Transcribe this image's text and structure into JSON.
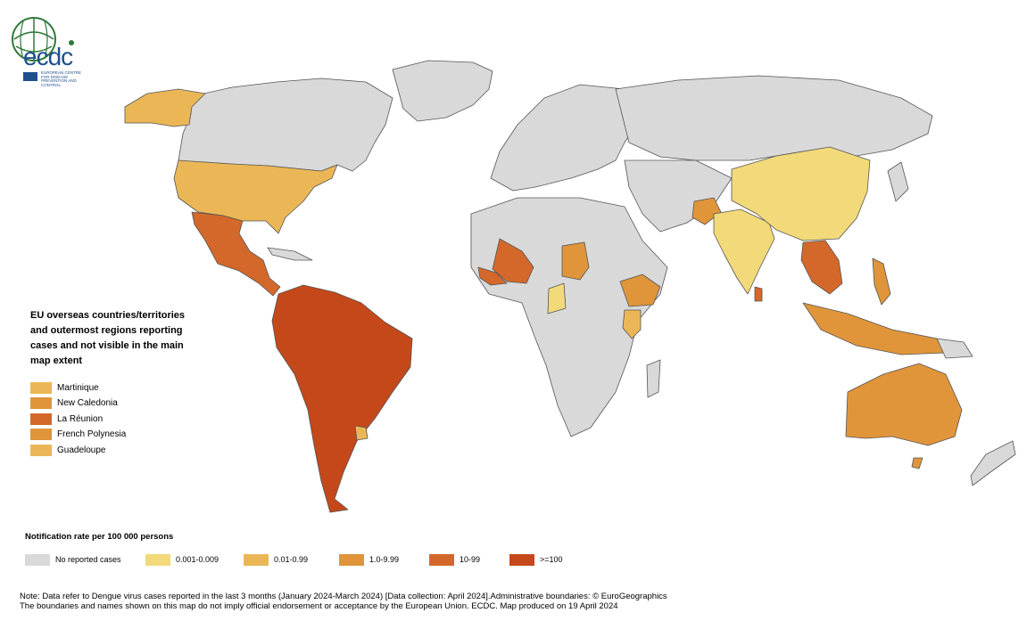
{
  "logo": {
    "text": "ecdc",
    "subtitle": "EUROPEAN CENTRE FOR DISEASE PREVENTION AND CONTROL"
  },
  "colors": {
    "none": "#d9d9d9",
    "c1": "#f2d97a",
    "c2": "#ebb756",
    "c3": "#e0953a",
    "c4": "#d4682a",
    "c5": "#c5481a",
    "ocean": "#ffffff",
    "border": "#555555"
  },
  "eu_panel": {
    "title_lines": [
      "EU overseas countries/territories",
      "and outermost regions reporting",
      "cases and not visible in the main",
      "map extent"
    ],
    "items": [
      {
        "label": "Martinique",
        "color": "#ebb756"
      },
      {
        "label": "New Caledonia",
        "color": "#e0953a"
      },
      {
        "label": "La Réunion",
        "color": "#d4682a"
      },
      {
        "label": "French Polynesia",
        "color": "#e0953a"
      },
      {
        "label": "Guadeloupe",
        "color": "#ebb756"
      }
    ]
  },
  "legend": {
    "title": "Notification rate per 100 000 persons",
    "items": [
      {
        "label": "No reported cases",
        "color": "#d9d9d9"
      },
      {
        "label": "0.001-0.009",
        "color": "#f2d97a"
      },
      {
        "label": "0.01-0.99",
        "color": "#ebb756"
      },
      {
        "label": "1.0-9.99",
        "color": "#e0953a"
      },
      {
        "label": "10-99",
        "color": "#d4682a"
      },
      {
        "label": ">=100",
        "color": "#c5481a"
      }
    ]
  },
  "note": {
    "line1": "Note: Data refer to Dengue virus cases reported in the last 3 months (January 2024-March 2024) [Data collection: April 2024].Administrative boundaries: © EuroGeographics",
    "line2": "The boundaries and names shown on this map do not imply official endorsement or acceptance by the European Union. ECDC. Map produced on 19 April 2024"
  }
}
